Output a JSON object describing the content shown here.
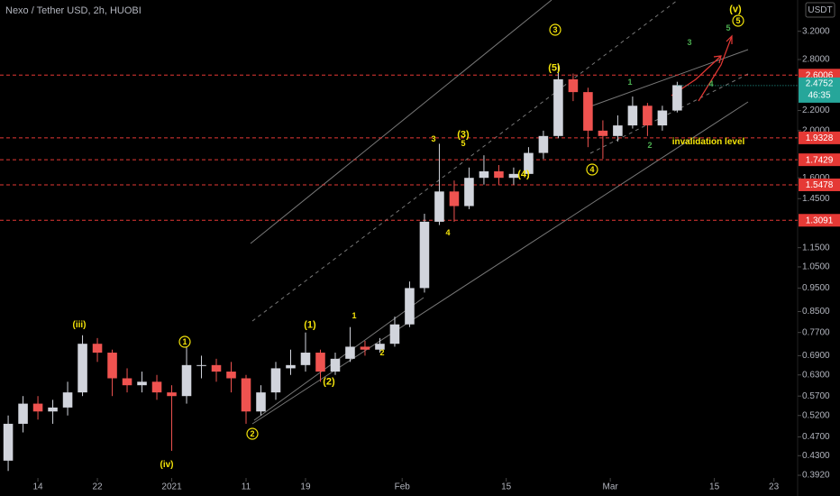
{
  "chart_data": {
    "type": "candlestick",
    "title": "Nexo / Tether USD, 2h, HUOBI",
    "currency": "USDT",
    "log_scale": true,
    "up_color": "#d1d4dc",
    "down_color": "#ef5350",
    "level_color": "#e53935",
    "x": [
      -4,
      -2,
      0,
      2,
      4,
      6,
      8,
      10,
      12,
      14,
      16,
      18,
      20,
      22,
      24,
      26,
      28,
      30,
      32,
      34,
      36,
      38,
      40,
      42,
      44,
      46,
      48,
      50,
      52,
      54,
      56,
      58,
      60,
      62,
      64,
      66,
      68,
      70,
      72,
      74,
      76,
      78,
      80,
      82,
      84,
      86
    ],
    "open": [
      0.42,
      0.5,
      0.55,
      0.53,
      0.54,
      0.58,
      0.73,
      0.7,
      0.62,
      0.6,
      0.61,
      0.58,
      0.57,
      0.66,
      0.66,
      0.64,
      0.62,
      0.53,
      0.58,
      0.65,
      0.66,
      0.7,
      0.64,
      0.68,
      0.72,
      0.71,
      0.73,
      0.8,
      0.95,
      1.3,
      1.5,
      1.4,
      1.6,
      1.65,
      1.6,
      1.63,
      1.8,
      1.95,
      2.55,
      2.4,
      2.0,
      1.95,
      2.05,
      2.25,
      2.05,
      2.2
    ],
    "high": [
      0.52,
      0.57,
      0.57,
      0.56,
      0.61,
      0.76,
      0.75,
      0.71,
      0.65,
      0.64,
      0.63,
      0.6,
      0.72,
      0.69,
      0.68,
      0.67,
      0.63,
      0.6,
      0.67,
      0.71,
      0.77,
      0.71,
      0.7,
      0.79,
      0.74,
      0.75,
      0.83,
      0.98,
      1.35,
      1.88,
      1.58,
      1.68,
      1.78,
      1.7,
      1.68,
      1.85,
      2.0,
      2.75,
      2.62,
      2.45,
      2.1,
      2.15,
      2.35,
      2.28,
      2.25,
      2.52
    ],
    "low": [
      0.4,
      0.48,
      0.51,
      0.5,
      0.52,
      0.57,
      0.67,
      0.57,
      0.58,
      0.58,
      0.56,
      0.44,
      0.55,
      0.62,
      0.61,
      0.58,
      0.5,
      0.52,
      0.56,
      0.63,
      0.64,
      0.61,
      0.63,
      0.67,
      0.69,
      0.7,
      0.72,
      0.79,
      0.93,
      1.28,
      1.3,
      1.38,
      1.55,
      1.55,
      1.55,
      1.6,
      1.75,
      1.93,
      2.3,
      1.85,
      1.75,
      1.9,
      2.02,
      1.95,
      2.0,
      2.18
    ],
    "close": [
      0.5,
      0.55,
      0.53,
      0.54,
      0.58,
      0.73,
      0.7,
      0.62,
      0.6,
      0.61,
      0.58,
      0.57,
      0.66,
      0.66,
      0.64,
      0.62,
      0.53,
      0.58,
      0.65,
      0.66,
      0.7,
      0.64,
      0.68,
      0.72,
      0.71,
      0.73,
      0.8,
      0.95,
      1.3,
      1.5,
      1.4,
      1.6,
      1.65,
      1.6,
      1.63,
      1.8,
      1.95,
      2.55,
      2.4,
      2.0,
      1.95,
      2.05,
      2.25,
      2.05,
      2.2,
      2.48
    ],
    "xlim": [
      -5.1,
      102.2
    ],
    "xticks": [
      {
        "value": 0,
        "label": "14"
      },
      {
        "value": 8,
        "label": "22"
      },
      {
        "value": 18,
        "label": "2021"
      },
      {
        "value": 28,
        "label": "11"
      },
      {
        "value": 36,
        "label": "19"
      },
      {
        "value": 49,
        "label": "Feb"
      },
      {
        "value": 63,
        "label": "15"
      },
      {
        "value": 77,
        "label": "Mar"
      },
      {
        "value": 91,
        "label": "15"
      },
      {
        "value": 99,
        "label": "23"
      }
    ],
    "ylim": [
      0.387,
      3.71
    ],
    "yticks": [
      {
        "value": 3.2,
        "label": "3.2000"
      },
      {
        "value": 2.8,
        "label": "2.8000"
      },
      {
        "value": 2.2,
        "label": "2.2000"
      },
      {
        "value": 2.0,
        "label": "2.0000"
      },
      {
        "value": 1.6,
        "label": "1.6000"
      },
      {
        "value": 1.45,
        "label": "1.4500"
      },
      {
        "value": 1.15,
        "label": "1.1500"
      },
      {
        "value": 1.05,
        "label": "1.0500"
      },
      {
        "value": 0.95,
        "label": "0.9500"
      },
      {
        "value": 0.85,
        "label": "0.8500"
      },
      {
        "value": 0.77,
        "label": "0.7700"
      },
      {
        "value": 0.69,
        "label": "0.6900"
      },
      {
        "value": 0.63,
        "label": "0.6300"
      },
      {
        "value": 0.57,
        "label": "0.5700"
      },
      {
        "value": 0.52,
        "label": "0.5200"
      },
      {
        "value": 0.47,
        "label": "0.4700"
      },
      {
        "value": 0.43,
        "label": "0.4300"
      },
      {
        "value": 0.392,
        "label": "0.3920"
      }
    ],
    "levels": [
      2.6006,
      1.9328,
      1.7429,
      1.5478,
      1.3091
    ],
    "last_price": 2.4752,
    "countdown": "46:35",
    "annotations": [
      {
        "text": "(iii)",
        "color": "#f5e50a",
        "circled": false
      },
      {
        "text": "(iv)",
        "color": "#f5e50a",
        "circled": false
      },
      {
        "text": "1",
        "color": "#f5e50a",
        "circled": true
      },
      {
        "text": "2",
        "color": "#f5e50a",
        "circled": true
      },
      {
        "text": "(1)",
        "color": "#f5e50a",
        "circled": false
      },
      {
        "text": "(2)",
        "color": "#f5e50a",
        "circled": false
      },
      {
        "text": "1",
        "color": "#f5e50a",
        "circled": false
      },
      {
        "text": "2",
        "color": "#f5e50a",
        "circled": false
      },
      {
        "text": "3",
        "color": "#f5e50a",
        "circled": false
      },
      {
        "text": "4",
        "color": "#f5e50a",
        "circled": false
      },
      {
        "text": "(3)",
        "color": "#f5e50a",
        "circled": false
      },
      {
        "text": "5",
        "color": "#f5e50a",
        "circled": false
      },
      {
        "text": "(4)",
        "color": "#f5e50a",
        "circled": false
      },
      {
        "text": "3",
        "color": "#f5e50a",
        "circled": true
      },
      {
        "text": "(5)",
        "color": "#f5e50a",
        "circled": false
      },
      {
        "text": "4",
        "color": "#f5e50a",
        "circled": true
      },
      {
        "text": "1",
        "color": "#4caf50",
        "circled": false
      },
      {
        "text": "2",
        "color": "#4caf50",
        "circled": false
      },
      {
        "text": "3",
        "color": "#4caf50",
        "circled": false
      },
      {
        "text": "4",
        "color": "#4caf50",
        "circled": false
      },
      {
        "text": "5",
        "color": "#4caf50",
        "circled": false
      },
      {
        "text": "(v)",
        "color": "#f5e50a",
        "circled": false
      },
      {
        "text": "5",
        "color": "#f5e50a",
        "circled": true
      },
      {
        "text": "invalidation level",
        "color": "#f5e50a",
        "circled": false
      }
    ]
  }
}
